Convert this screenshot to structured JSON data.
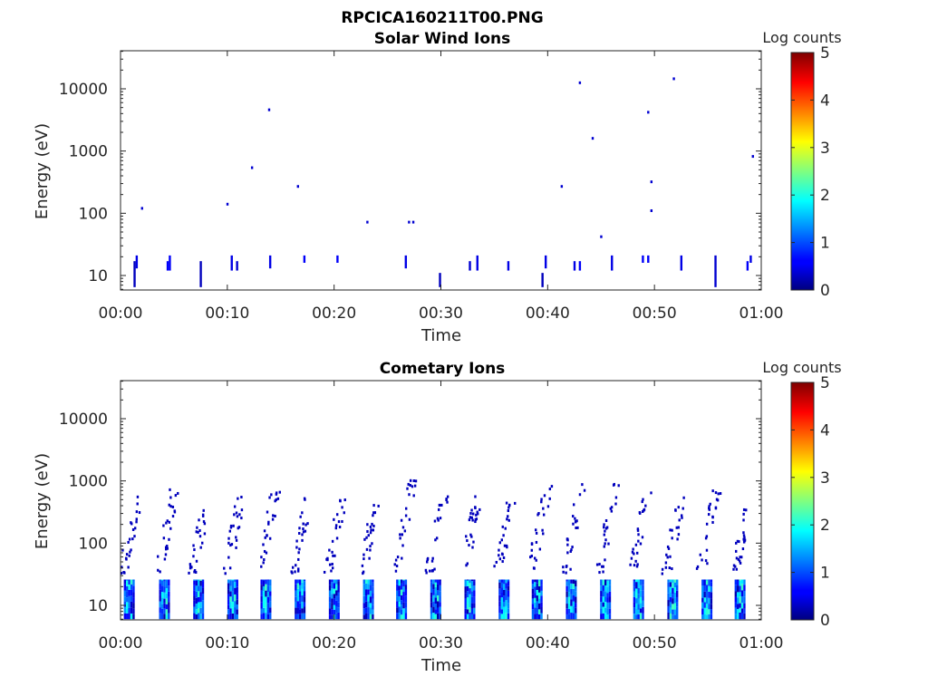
{
  "figure": {
    "filename": "RPCICA160211T00.PNG"
  },
  "chart_data": [
    {
      "type": "heatmap",
      "title": "Solar Wind Ions",
      "xlabel": "Time",
      "ylabel": "Energy (eV)",
      "x_ticks": [
        "00:00",
        "00:10",
        "00:20",
        "00:30",
        "00:40",
        "00:50",
        "01:00"
      ],
      "x_range_min": [
        0,
        60
      ],
      "y_scale": "log",
      "y_ticks": [
        "10",
        "100",
        "1000",
        "10000"
      ],
      "y_range_eV": [
        6,
        45000
      ],
      "colorbar": {
        "label": "Log counts",
        "ticks": [
          "0",
          "1",
          "2",
          "3",
          "4",
          "5"
        ],
        "range": [
          0,
          5
        ],
        "colormap": "jet"
      },
      "cells": [
        {
          "t": 1.3,
          "e": [
            6.5,
            17
          ],
          "v": 0.3
        },
        {
          "t": 1.5,
          "e": [
            13,
            21
          ],
          "v": 0.5
        },
        {
          "t": 4.4,
          "e": [
            12,
            17
          ],
          "v": 0.6
        },
        {
          "t": 4.6,
          "e": [
            12,
            21
          ],
          "v": 0.6
        },
        {
          "t": 7.5,
          "e": [
            6.5,
            17
          ],
          "v": 0.3
        },
        {
          "t": 10.4,
          "e": [
            12,
            21
          ],
          "v": 0.5
        },
        {
          "t": 10.9,
          "e": [
            12,
            17
          ],
          "v": 0.4
        },
        {
          "t": 14.0,
          "e": [
            13,
            21
          ],
          "v": 0.5
        },
        {
          "t": 17.2,
          "e": [
            16,
            21
          ],
          "v": 0.6
        },
        {
          "t": 20.3,
          "e": [
            16,
            21
          ],
          "v": 0.6
        },
        {
          "t": 26.7,
          "e": [
            13,
            21
          ],
          "v": 0.5
        },
        {
          "t": 29.9,
          "e": [
            6.5,
            11
          ],
          "v": 0.3
        },
        {
          "t": 32.7,
          "e": [
            12,
            17
          ],
          "v": 0.4
        },
        {
          "t": 33.4,
          "e": [
            12,
            21
          ],
          "v": 0.5
        },
        {
          "t": 36.3,
          "e": [
            12,
            17
          ],
          "v": 0.5
        },
        {
          "t": 39.5,
          "e": [
            6.5,
            11
          ],
          "v": 0.3
        },
        {
          "t": 39.8,
          "e": [
            13,
            21
          ],
          "v": 0.5
        },
        {
          "t": 42.5,
          "e": [
            12,
            17
          ],
          "v": 0.5
        },
        {
          "t": 43.0,
          "e": [
            12,
            17
          ],
          "v": 0.6
        },
        {
          "t": 46.0,
          "e": [
            12,
            21
          ],
          "v": 0.5
        },
        {
          "t": 48.9,
          "e": [
            16,
            21
          ],
          "v": 0.6
        },
        {
          "t": 49.4,
          "e": [
            16,
            21
          ],
          "v": 0.6
        },
        {
          "t": 52.5,
          "e": [
            12,
            21
          ],
          "v": 0.5
        },
        {
          "t": 55.7,
          "e": [
            6.5,
            21
          ],
          "v": 0.4
        },
        {
          "t": 58.7,
          "e": [
            12,
            17
          ],
          "v": 0.6
        },
        {
          "t": 59.0,
          "e": [
            16,
            21
          ],
          "v": 0.5
        }
      ],
      "points": [
        {
          "t": 2.0,
          "e": 120
        },
        {
          "t": 10.0,
          "e": 140
        },
        {
          "t": 12.3,
          "e": 540
        },
        {
          "t": 13.9,
          "e": 4600
        },
        {
          "t": 16.6,
          "e": 270
        },
        {
          "t": 23.1,
          "e": 72
        },
        {
          "t": 27.0,
          "e": 72
        },
        {
          "t": 27.4,
          "e": 72
        },
        {
          "t": 41.3,
          "e": 270
        },
        {
          "t": 43.0,
          "e": 12500
        },
        {
          "t": 44.2,
          "e": 1600
        },
        {
          "t": 45.0,
          "e": 42
        },
        {
          "t": 49.4,
          "e": 4200
        },
        {
          "t": 49.7,
          "e": 320
        },
        {
          "t": 49.7,
          "e": 110
        },
        {
          "t": 51.8,
          "e": 14500
        },
        {
          "t": 59.2,
          "e": 820
        }
      ]
    },
    {
      "type": "heatmap",
      "title": "Cometary Ions",
      "xlabel": "Time",
      "ylabel": "Energy (eV)",
      "x_ticks": [
        "00:00",
        "00:10",
        "00:20",
        "00:30",
        "00:40",
        "00:50",
        "01:00"
      ],
      "x_range_min": [
        0,
        60
      ],
      "y_scale": "log",
      "y_ticks": [
        "10",
        "100",
        "1000",
        "10000"
      ],
      "y_range_eV": [
        6,
        45000
      ],
      "colorbar": {
        "label": "Log counts",
        "ticks": [
          "0",
          "1",
          "2",
          "3",
          "4",
          "5"
        ],
        "range": [
          0,
          5
        ],
        "colormap": "jet"
      },
      "sweep_times_min": [
        0.8,
        4.1,
        7.3,
        10.5,
        13.6,
        16.8,
        20.0,
        23.2,
        26.3,
        29.5,
        32.7,
        35.9,
        39.0,
        42.2,
        45.4,
        48.5,
        51.7,
        54.9,
        58.0
      ],
      "sweep_peak_eV": [
        560,
        780,
        340,
        620,
        680,
        720,
        600,
        500,
        1150,
        680,
        560,
        460,
        920,
        1050,
        920,
        680,
        560,
        720,
        360
      ],
      "low_band": {
        "e_min": 6,
        "e_max": 26,
        "v_range": [
          0.2,
          2.2
        ]
      },
      "scatter_log_v": 0.3
    }
  ]
}
